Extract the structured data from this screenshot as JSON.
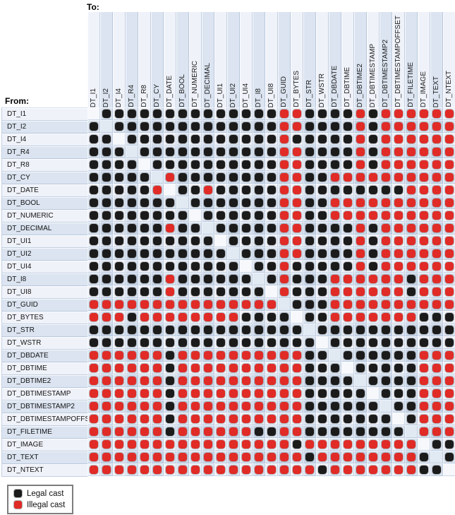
{
  "labels": {
    "to": "To:",
    "from": "From:"
  },
  "legend": {
    "items": [
      {
        "key": "legal",
        "label": "Legal cast",
        "color": "#1b1b1b"
      },
      {
        "key": "illegal",
        "label": "Illegal cast",
        "color": "#e02b27"
      }
    ]
  },
  "colors": {
    "legal_dot": "#1b1b1b",
    "illegal_dot": "#e02b27",
    "band_light": "#eff2f9",
    "band_mixed": "#dbe4f0",
    "band_dark": "#c9d6e8",
    "diag_light": "#f6f8fc",
    "diag_dark": "#e1e9f3"
  },
  "chart_data": {
    "type": "heatmap",
    "x_axis_label": "To:",
    "y_axis_label": "From:",
    "types": [
      "DT_I1",
      "DT_I2",
      "DT_I4",
      "DT_R4",
      "DT_R8",
      "DT_CY",
      "DT_DATE",
      "DT_BOOL",
      "DT_NUMERIC",
      "DT_DECIMAL",
      "DT_UI1",
      "DT_UI2",
      "DT_UI4",
      "DT_I8",
      "DT_UI8",
      "DT_GUID",
      "DT_BYTES",
      "DT_STR",
      "DT_WSTR",
      "DT_DBDATE",
      "DT_DBTIME",
      "DT_DBTIME2",
      "DT_DBTIMESTAMP",
      "DT_DBTIMESTAMP2",
      "DT_DBTIMESTAMPOFFSET",
      "DT_FILETIME",
      "DT_IMAGE",
      "DT_TEXT",
      "DT_NTEXT"
    ],
    "cell_legend": {
      "B": "Legal cast",
      "R": "Illegal cast",
      ".": "empty (same type)"
    },
    "matrix": [
      ".BBBBBBBBBBBBBBRRBBBBRBRRRRRR",
      "B.BBBBBBBBBBBBBRRBBBBRBRRRRRR",
      "BB.BBBBBBBBBBBBRBBBBBRBRRRRRR",
      "BBB.BBBBBBBBBBBRRBBBBRBRRRRRR",
      "BBBB.BBBBBBBBBBRRBBBBRBRRRRRR",
      "BBBBB.RBBBBBBBBRRBBRRRRRRRRRR",
      "BBBBBR.BBRBBBBBRRBBBBBBBBRRRR",
      "BBBBBBB.BBBBBBBRRBBRRRRRRRRRR",
      "BBBBBBBB.BBBBBBRRBBRRRRRRRRRR",
      "BBBBBBRBB.BBBBBRRBBBBRBRRRRRR",
      "BBBBBBBBBB.BBBBRRBBBBRBRRRRRR",
      "BBBBBBBBBBB.BBBRRBBBBRBRRRRRR",
      "BBBBBBBBBBBB.BBRBBBBBRBRRRRRR",
      "BBBBBBRBBBBBB.BRBBBRRRRRRBRRR",
      "BBBBBBRBBBBBBB.RBBBRRRRRRBRRR",
      "RRRRRRRRRRRRRRR.BBBRRRRRRRRRR",
      "RRRBRRRRRRRRBBBB.BBRRRRRRRBBB",
      "BBBBBBBBBBBBBBBBB.BBBBBBBBBBB",
      "BBBBBBBBBBBBBBBBBB.BBBBBBBBBB",
      "RRRRRRBRRRRRRRRRRBB.BBBBBBRRR",
      "RRRRRRBRRRRRRRRRRBBB.BBBBBRRR",
      "RRRRRRBRRRRRRRRRRBBBB.BBBBRRR",
      "RRRRRRBRRRRRRRRRRBBBBB.BBBRRR",
      "RRRRRRBRRRRRRRRRRBBBBBB.BBRRR",
      "RRRRRRBRRRRRRRRRRBBBBBBB.BRRR",
      "RRRRRRBRRRRRRBBRRBBBBBBBB.RRR",
      "RRRRRRRRRRRRRRRRBRRRRRRRRR.BB",
      "RRRRRRRRRRRRRRRRRBRRRRRRRRB.B",
      "RRRRRRRRRRRRRRRRRRBRRRRRRRBB."
    ]
  }
}
